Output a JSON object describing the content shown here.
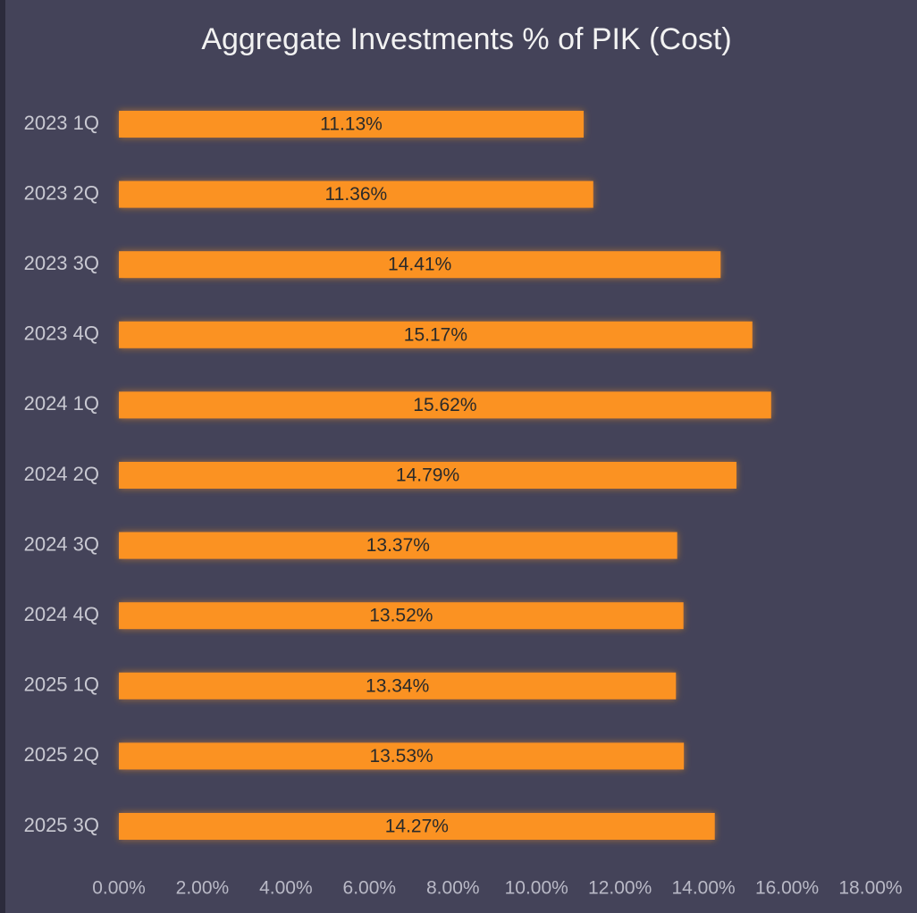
{
  "chart_data": {
    "type": "bar",
    "orientation": "horizontal",
    "title": "Aggregate Investments % of PIK (Cost)",
    "categories": [
      "2023 1Q",
      "2023 2Q",
      "2023 3Q",
      "2023 4Q",
      "2024 1Q",
      "2024 2Q",
      "2024 3Q",
      "2024 4Q",
      "2025 1Q",
      "2025 2Q",
      "2025 3Q"
    ],
    "values": [
      11.13,
      11.36,
      14.41,
      15.17,
      15.62,
      14.79,
      13.37,
      13.52,
      13.34,
      13.53,
      14.27
    ],
    "value_labels": [
      "11.13%",
      "11.36%",
      "14.41%",
      "15.17%",
      "15.62%",
      "14.79%",
      "13.37%",
      "13.52%",
      "13.34%",
      "13.53%",
      "14.27%"
    ],
    "color": "#fb9224",
    "xlim": [
      0,
      18
    ],
    "xticks": [
      {
        "value": 0,
        "label": "0.00%"
      },
      {
        "value": 2,
        "label": "2.00%"
      },
      {
        "value": 4,
        "label": "4.00%"
      },
      {
        "value": 6,
        "label": "6.00%"
      },
      {
        "value": 8,
        "label": "8.00%"
      },
      {
        "value": 10,
        "label": "10.00%"
      },
      {
        "value": 12,
        "label": "12.00%"
      },
      {
        "value": 14,
        "label": "14.00%"
      },
      {
        "value": 16,
        "label": "16.00%"
      },
      {
        "value": 18,
        "label": "18.00%"
      }
    ],
    "grid": false
  }
}
